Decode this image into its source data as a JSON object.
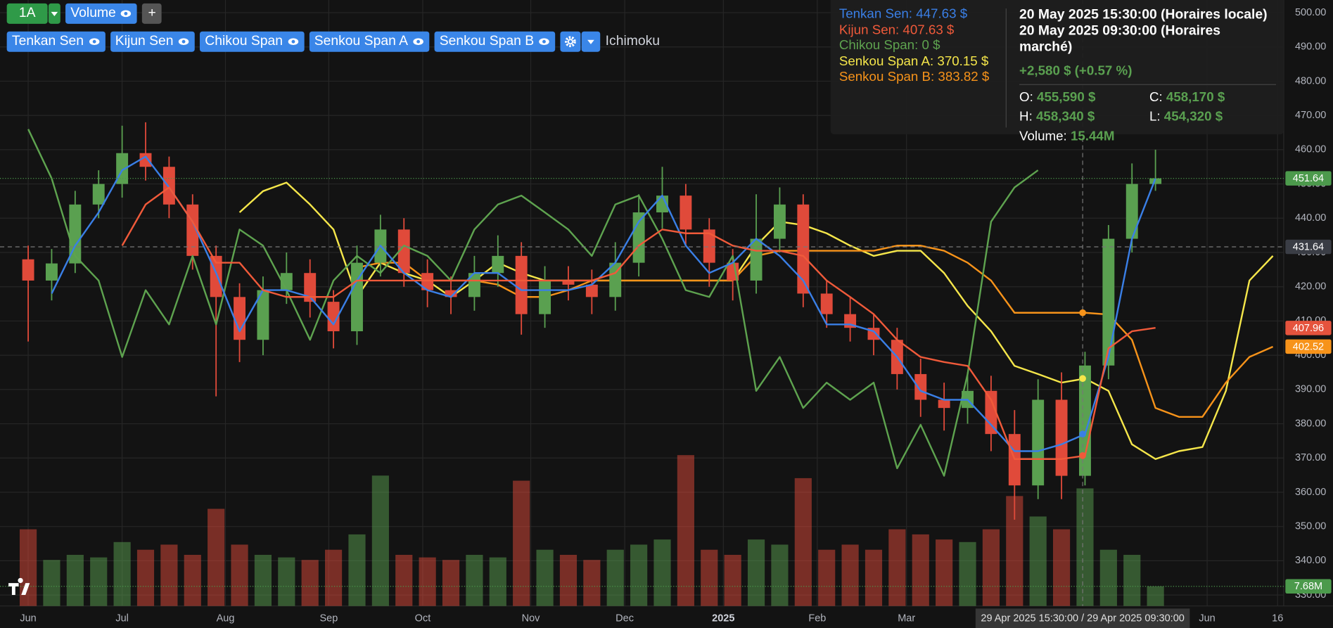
{
  "toolbar": {
    "interval": "1A",
    "volume": "Volume",
    "add": "+",
    "group": "Ichimoku"
  },
  "tooltip": {
    "legend": [
      "Tenkan Sen: 447.63 $",
      "Kijun Sen: 407.63 $",
      "Chikou Span: 0 $",
      "Senkou Span A: 370.15 $",
      "Senkou Span B: 383.82 $"
    ],
    "local_time": "20 May 2025 15:30:00 (Horaires locale)",
    "market_time": "20 May 2025 09:30:00 (Horaires marché)",
    "change": "+2,580 $ (+0.57 %)",
    "ohlc": [
      {
        "label": "O:",
        "value": "455,590 $"
      },
      {
        "label": "C:",
        "value": "458,170 $"
      },
      {
        "label": "H:",
        "value": "458,340 $"
      },
      {
        "label": "L:",
        "value": "454,320 $"
      }
    ],
    "volume": {
      "label": "Volume:",
      "value": "15.44M"
    }
  },
  "chart_data": {
    "type": "candlestick",
    "x": [
      0,
      5,
      10,
      15,
      20,
      25,
      30,
      35,
      40,
      45,
      50,
      55,
      60,
      65,
      70,
      75,
      80,
      85,
      90,
      95,
      100,
      105,
      110,
      115,
      120,
      125,
      130,
      135,
      140,
      145,
      150,
      155,
      160,
      165,
      170,
      175,
      180,
      185,
      190,
      195,
      200,
      205,
      210,
      215,
      220,
      225,
      230,
      235,
      240,
      245,
      250,
      255,
      260,
      265
    ],
    "xlim": [
      -6,
      267.3
    ],
    "xticks": [
      {
        "value": 0,
        "label": "Jun"
      },
      {
        "value": 20,
        "label": "Jul"
      },
      {
        "value": 42,
        "label": "Aug"
      },
      {
        "value": 64,
        "label": "Sep"
      },
      {
        "value": 84,
        "label": "Oct"
      },
      {
        "value": 107,
        "label": "Nov"
      },
      {
        "value": 127,
        "label": "Dec"
      },
      {
        "value": 148,
        "label": "2025"
      },
      {
        "value": 168,
        "label": "Feb"
      },
      {
        "value": 187,
        "label": "Mar"
      },
      {
        "value": 251,
        "label": "Jun"
      },
      {
        "value": 266,
        "label": "16"
      }
    ],
    "ylim": [
      326.8,
      503.7
    ],
    "yticks": [
      {
        "value": 330,
        "label": "330.00"
      },
      {
        "value": 340,
        "label": "340.00"
      },
      {
        "value": 350,
        "label": "350.00"
      },
      {
        "value": 360,
        "label": "360.00"
      },
      {
        "value": 370,
        "label": "370.00"
      },
      {
        "value": 380,
        "label": "380.00"
      },
      {
        "value": 390,
        "label": "390.00"
      },
      {
        "value": 400,
        "label": "400.00"
      },
      {
        "value": 410,
        "label": "410.00"
      },
      {
        "value": 420,
        "label": "420.00"
      },
      {
        "value": 430,
        "label": "430.00"
      },
      {
        "value": 440,
        "label": "440.00"
      },
      {
        "value": 450,
        "label": "450.00"
      },
      {
        "value": 460,
        "label": "460.00"
      },
      {
        "value": 470,
        "label": "470.00"
      },
      {
        "value": 480,
        "label": "480.00"
      },
      {
        "value": 490,
        "label": "490.00"
      },
      {
        "value": 500,
        "label": "500.00"
      }
    ],
    "y2lim": [
      0,
      237
    ],
    "grid": true,
    "candles": {
      "up_color": "#5aa050",
      "down_color": "#e04a3a",
      "open": [
        428,
        421.8,
        426.8,
        444,
        450,
        459,
        455,
        444,
        429,
        417,
        404.5,
        419,
        424,
        415.6,
        407,
        427,
        436.7,
        424,
        419,
        417,
        424,
        429,
        412,
        421.8,
        420.6,
        417,
        427,
        441.7,
        446.6,
        436.7,
        427,
        421.8,
        434,
        444,
        418,
        412,
        408,
        404.5,
        394.5,
        387,
        384.6,
        389.6,
        377,
        362,
        387,
        364.8,
        397,
        434,
        450,
        null,
        null,
        null,
        null,
        null
      ],
      "high": [
        432,
        431,
        448,
        454,
        467,
        468,
        458,
        447,
        432,
        421,
        423,
        430,
        428,
        419,
        432,
        441,
        440,
        428,
        423,
        429,
        435,
        433,
        426,
        426,
        425,
        433,
        447,
        455,
        450,
        440,
        431,
        447,
        449,
        447,
        422,
        417,
        412,
        408,
        399,
        392,
        395,
        394,
        384,
        393,
        395,
        401,
        438,
        456,
        460,
        null,
        null,
        null,
        null,
        null
      ],
      "low": [
        404,
        416,
        424,
        440,
        446,
        451,
        440,
        425,
        388,
        398,
        400,
        415,
        411,
        402,
        403,
        423,
        420,
        414,
        412,
        413,
        420,
        406,
        408,
        416,
        412,
        413,
        423,
        437,
        432,
        420,
        416,
        418,
        430,
        414,
        408,
        404,
        400,
        390,
        382,
        378,
        380,
        372,
        352,
        358,
        358,
        362,
        393,
        430,
        448,
        null,
        null,
        null,
        null,
        null
      ],
      "close": [
        421.8,
        426.8,
        444,
        450,
        459,
        455,
        444,
        429,
        417,
        404.5,
        419,
        424,
        415.6,
        407,
        427,
        436.7,
        424,
        419,
        417,
        424,
        429,
        412,
        421.8,
        420.6,
        417,
        427,
        441.7,
        446.6,
        436.7,
        427,
        421.8,
        434,
        444,
        418,
        412,
        408,
        404.5,
        394.5,
        387,
        384.6,
        389.6,
        377,
        362,
        387,
        364.8,
        397,
        434,
        450,
        451.64,
        null,
        null,
        null,
        null,
        null
      ]
    },
    "volume": {
      "axis": "y2",
      "values": [
        30,
        18,
        20,
        19,
        25,
        22,
        24,
        20,
        38,
        24,
        20,
        19,
        18,
        22,
        28,
        51,
        20,
        19,
        18,
        20,
        19,
        49,
        22,
        20,
        18,
        22,
        24,
        26,
        59,
        22,
        20,
        26,
        24,
        50,
        22,
        24,
        22,
        30,
        28,
        26,
        25,
        30,
        43,
        35,
        30,
        46,
        22,
        20,
        7.68,
        null,
        null,
        null,
        null,
        null
      ]
    },
    "series": [
      {
        "name": "Tenkan Sen",
        "color": "#3a7fe6",
        "values": [
          null,
          418,
          432,
          441.7,
          454,
          458,
          449,
          439,
          424,
          407,
          419,
          419,
          417,
          409,
          421.8,
          432,
          424,
          419,
          417,
          424,
          424,
          419,
          419,
          419,
          420.6,
          427,
          439,
          446.6,
          432,
          424,
          427,
          434,
          429,
          421.8,
          409,
          409,
          407,
          399.5,
          389.6,
          387,
          387,
          379.7,
          372,
          372,
          374,
          377,
          399.5,
          434,
          451.6,
          null,
          null,
          null,
          null,
          null
        ]
      },
      {
        "name": "Kijun Sen",
        "color": "#f05a3a",
        "values": [
          null,
          null,
          null,
          null,
          432,
          444,
          449,
          439,
          427,
          427,
          419,
          417,
          417,
          417,
          421.8,
          421.8,
          421.8,
          421.8,
          421.8,
          421.8,
          421.8,
          421.8,
          421.8,
          421.8,
          421.8,
          424,
          432,
          436.7,
          435.6,
          435.6,
          432,
          430.5,
          430.5,
          429,
          421.8,
          417,
          412,
          404.5,
          399.5,
          398,
          396.9,
          387,
          369.7,
          369.7,
          369.7,
          370.7,
          402,
          407,
          408,
          null,
          null,
          null,
          null,
          null
        ]
      },
      {
        "name": "Chikou Span",
        "color": "#5ea34f",
        "values": [
          466,
          451.6,
          429,
          421.8,
          399.5,
          419,
          409,
          429,
          409,
          436.7,
          432,
          419,
          404.5,
          421.8,
          429,
          424,
          432,
          429,
          421.8,
          436.7,
          444,
          446.6,
          441.7,
          436.7,
          429,
          444,
          446.6,
          434,
          419,
          417,
          429,
          389.6,
          399.5,
          384.6,
          392,
          387,
          392,
          367,
          379.7,
          364.8,
          394.5,
          439,
          449,
          454,
          null,
          null,
          null,
          null,
          null,
          null,
          null,
          null,
          null,
          null
        ]
      },
      {
        "name": "Senkou Span A",
        "color": "#f5e64a",
        "values": [
          null,
          null,
          null,
          null,
          null,
          null,
          null,
          null,
          null,
          441.7,
          447.9,
          450.4,
          444,
          436.7,
          417,
          427,
          424,
          421.8,
          417,
          421.8,
          427,
          424,
          421.8,
          421.8,
          421.8,
          421.8,
          421.8,
          421.8,
          421.8,
          421.8,
          421.8,
          432,
          439,
          438,
          435.6,
          432,
          429,
          430.5,
          430.5,
          424,
          414.4,
          407,
          396.9,
          394.5,
          392,
          393.2,
          389.6,
          374,
          369.7,
          372,
          373.2,
          389.6,
          421.8,
          429
        ]
      },
      {
        "name": "Senkou Span B",
        "color": "#f7931a",
        "values": [
          null,
          null,
          null,
          null,
          null,
          null,
          null,
          null,
          null,
          null,
          null,
          null,
          null,
          null,
          425.6,
          427,
          427,
          421.8,
          421.8,
          421.8,
          420.6,
          417,
          417,
          419,
          421.8,
          421.8,
          421.8,
          421.8,
          421.8,
          421.8,
          421.8,
          429,
          430.5,
          430.5,
          430.5,
          430.5,
          430.5,
          432,
          432,
          430.5,
          427,
          421.8,
          412.4,
          412.4,
          412.4,
          412.4,
          411.9,
          404.5,
          384.6,
          382,
          382,
          392,
          399.5,
          402.5
        ]
      }
    ],
    "price_labels": [
      {
        "value": 451.64,
        "color": "#4c9a4c",
        "line": "dotted"
      },
      {
        "value": 431.64,
        "color": "#3a3d45",
        "line": "dashed"
      },
      {
        "value": 407.96,
        "color": "#e5533d"
      },
      {
        "value": 402.52,
        "color": "#f7931a"
      }
    ],
    "volume_label": {
      "value": 7.68,
      "label": "7.68M",
      "color": "#4c9a4c"
    },
    "crosshair": {
      "x": 224.5,
      "label": "29 Apr 2025 15:30:00 / 29 Apr 2025 09:30:00"
    }
  }
}
